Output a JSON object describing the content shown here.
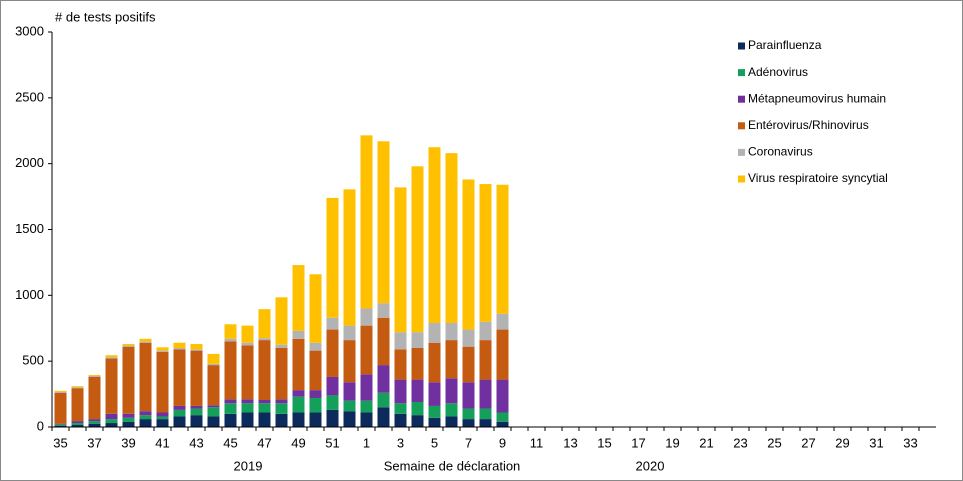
{
  "chart_data": {
    "type": "stacked_bar",
    "ylabel": "# de tests positifs",
    "xlabel": "Semaine de déclaration",
    "annotations": [
      "2019",
      "2020"
    ],
    "categories": [
      "35",
      null,
      "37",
      null,
      "39",
      null,
      "41",
      null,
      "43",
      null,
      "45",
      null,
      "47",
      null,
      "49",
      null,
      "51",
      null,
      "1",
      null,
      "3",
      null,
      "5",
      null,
      "7",
      null,
      "9",
      null,
      "11",
      null,
      "13",
      null,
      "15",
      null,
      "17",
      null,
      "19",
      null,
      "21",
      null,
      "23",
      null,
      "25",
      null,
      "27",
      null,
      "29",
      null,
      "31",
      null,
      "33",
      null
    ],
    "ylim": [
      0,
      3000
    ],
    "yticks": [
      0,
      500,
      1000,
      1500,
      2000,
      2500,
      3000
    ],
    "legend": "top-right",
    "series": [
      {
        "name": "Parainfluenza",
        "color": "#0d2a5c",
        "values": [
          10,
          15,
          25,
          30,
          40,
          60,
          60,
          80,
          90,
          80,
          100,
          110,
          110,
          100,
          110,
          110,
          130,
          120,
          110,
          150,
          100,
          90,
          70,
          80,
          60,
          60,
          40,
          null,
          null,
          null,
          null,
          null,
          null,
          null,
          null,
          null,
          null,
          null,
          null,
          null,
          null,
          null,
          null,
          null,
          null,
          null,
          null,
          null,
          null,
          null,
          null,
          null
        ]
      },
      {
        "name": "Adénovirus",
        "color": "#14a05a",
        "values": [
          10,
          15,
          20,
          30,
          30,
          30,
          20,
          50,
          50,
          70,
          80,
          70,
          70,
          80,
          120,
          110,
          110,
          80,
          90,
          110,
          80,
          100,
          90,
          100,
          80,
          80,
          70,
          null,
          null,
          null,
          null,
          null,
          null,
          null,
          null,
          null,
          null,
          null,
          null,
          null,
          null,
          null,
          null,
          null,
          null,
          null,
          null,
          null,
          null,
          null,
          null,
          null
        ]
      },
      {
        "name": "Métapneumovirus humain",
        "color": "#7030a0",
        "values": [
          5,
          15,
          15,
          40,
          30,
          30,
          30,
          30,
          20,
          15,
          30,
          30,
          25,
          30,
          50,
          60,
          140,
          140,
          200,
          210,
          180,
          170,
          180,
          190,
          200,
          220,
          250,
          null,
          null,
          null,
          null,
          null,
          null,
          null,
          null,
          null,
          null,
          null,
          null,
          null,
          null,
          null,
          null,
          null,
          null,
          null,
          null,
          null,
          null,
          null,
          null,
          null
        ]
      },
      {
        "name": "Entérovirus/Rhinovirus",
        "color": "#c55a11",
        "values": [
          235,
          250,
          320,
          420,
          510,
          520,
          460,
          430,
          420,
          305,
          440,
          410,
          455,
          390,
          390,
          300,
          360,
          320,
          370,
          360,
          230,
          240,
          300,
          290,
          270,
          300,
          380,
          null,
          null,
          null,
          null,
          null,
          null,
          null,
          null,
          null,
          null,
          null,
          null,
          null,
          null,
          null,
          null,
          null,
          null,
          null,
          null,
          null,
          null,
          null,
          null,
          null
        ]
      },
      {
        "name": "Coronavirus",
        "color": "#b3b3b3",
        "values": [
          8,
          7,
          8,
          10,
          8,
          10,
          10,
          10,
          10,
          10,
          20,
          20,
          15,
          25,
          60,
          60,
          90,
          110,
          130,
          110,
          130,
          120,
          150,
          130,
          130,
          140,
          120,
          null,
          null,
          null,
          null,
          null,
          null,
          null,
          null,
          null,
          null,
          null,
          null,
          null,
          null,
          null,
          null,
          null,
          null,
          null,
          null,
          null,
          null,
          null,
          null,
          null
        ]
      },
      {
        "name": "Virus respiratoire syncytial",
        "color": "#ffc000",
        "values": [
          7,
          8,
          7,
          15,
          12,
          20,
          25,
          40,
          40,
          75,
          110,
          130,
          220,
          360,
          500,
          520,
          910,
          1035,
          1315,
          1230,
          1100,
          1260,
          1335,
          1290,
          1140,
          1045,
          980,
          null,
          null,
          null,
          null,
          null,
          null,
          null,
          null,
          null,
          null,
          null,
          null,
          null,
          null,
          null,
          null,
          null,
          null,
          null,
          null,
          null,
          null,
          null,
          null,
          null
        ]
      }
    ]
  }
}
